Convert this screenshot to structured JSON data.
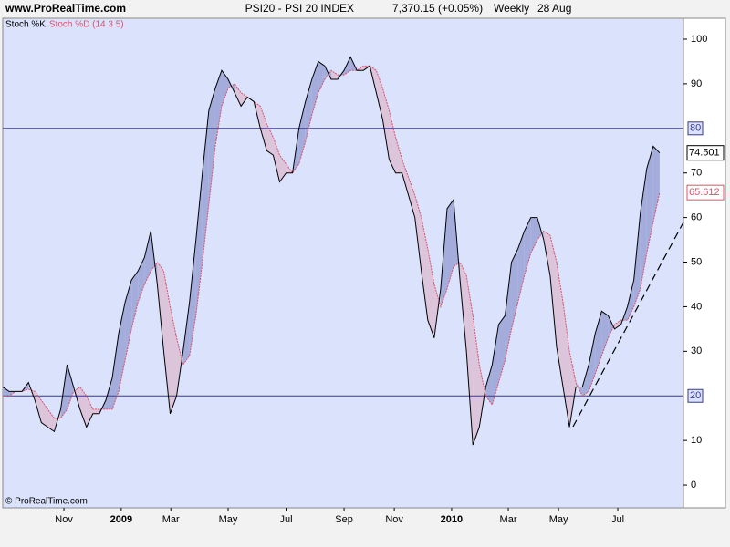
{
  "chart_data": {
    "type": "line",
    "site": "www.ProRealTime.com",
    "title": "PSI20 - PSI 20 INDEX",
    "quote": "7,370.15 (+0.05%)",
    "period": "Weekly",
    "date": "28 Aug",
    "footer": "© ProRealTime.com",
    "series": [
      {
        "name": "Stoch %K",
        "color": "#000000",
        "values": [
          22,
          21,
          21,
          21,
          23,
          19,
          14,
          13,
          12,
          17,
          27,
          22,
          17,
          13,
          16,
          16,
          19,
          24,
          34,
          41,
          46,
          48,
          51,
          57,
          45,
          30,
          16,
          20,
          30,
          41,
          55,
          70,
          84,
          89,
          93,
          91,
          88,
          85,
          87,
          86,
          80,
          75,
          74,
          68,
          70,
          70,
          80,
          86,
          91,
          95,
          94,
          91,
          91,
          93,
          96,
          93,
          93,
          94,
          88,
          82,
          73,
          70,
          70,
          65,
          60,
          48,
          37,
          33,
          44,
          62,
          64,
          46,
          30,
          9,
          13,
          22,
          27,
          36,
          38,
          50,
          53,
          57,
          60,
          60,
          55,
          47,
          31,
          22,
          13,
          22,
          22,
          27,
          34,
          39,
          38,
          35,
          36,
          40,
          46,
          61,
          71,
          76,
          74.501
        ]
      },
      {
        "name": "Stoch %D (14 3 5)",
        "color": "#e0506a",
        "values": [
          20,
          20,
          21,
          21,
          21.5,
          21,
          19,
          17,
          15,
          15,
          17,
          21,
          22,
          20,
          17,
          17,
          17,
          17,
          21,
          28,
          35,
          41,
          45,
          48,
          50,
          48,
          40,
          33,
          27,
          29,
          38,
          50,
          63,
          76,
          85,
          89,
          90,
          88,
          87,
          86,
          85,
          81,
          78,
          74,
          72,
          70,
          72,
          77,
          83,
          88,
          91,
          93,
          92,
          92,
          93,
          93,
          94,
          94,
          93,
          89,
          84,
          78,
          73,
          69,
          65,
          60,
          53,
          45,
          40,
          44,
          49,
          50,
          47,
          38,
          27,
          20,
          18,
          23,
          28,
          35,
          41,
          47,
          52,
          55,
          57,
          56,
          50,
          41,
          30,
          23,
          20,
          21,
          25,
          29,
          33,
          36,
          37,
          37,
          40,
          44,
          52,
          59,
          65.612
        ]
      }
    ],
    "fill_up": "#a4acdc",
    "fill_down": "#dcc4da",
    "reference_lines": [
      80,
      20
    ],
    "ylim": [
      -5.1,
      104.7
    ],
    "yticks": [
      0,
      10,
      30,
      40,
      50,
      60,
      70,
      90,
      100
    ],
    "xlim": [
      0,
      105.7
    ],
    "xticks": [
      {
        "value": 9.5,
        "label": "Nov"
      },
      {
        "value": 18.4,
        "label": "2009"
      },
      {
        "value": 26.1,
        "label": "Mar"
      },
      {
        "value": 35,
        "label": "May"
      },
      {
        "value": 44,
        "label": "Jul"
      },
      {
        "value": 53,
        "label": "Sep"
      },
      {
        "value": 60.8,
        "label": "Nov"
      },
      {
        "value": 69.7,
        "label": "2010"
      },
      {
        "value": 78.5,
        "label": "Mar"
      },
      {
        "value": 86.3,
        "label": "May"
      },
      {
        "value": 95.5,
        "label": "Jul"
      }
    ]
  }
}
